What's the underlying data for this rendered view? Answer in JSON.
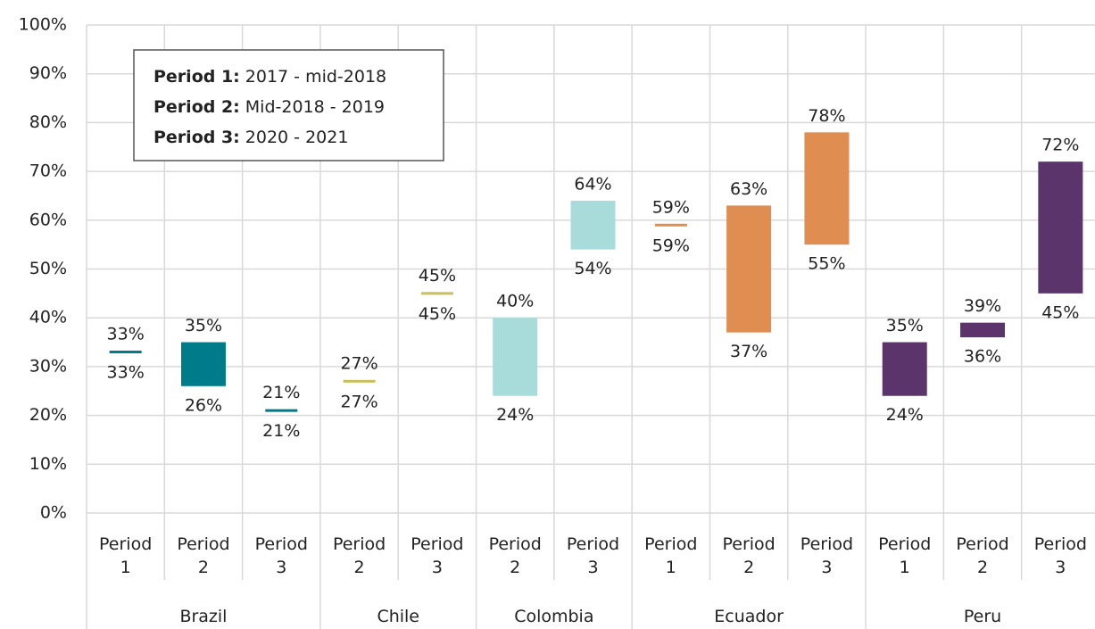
{
  "chart_data": {
    "type": "floating_bar",
    "groups": [
      {
        "name": "Brazil",
        "color": "#007b8a",
        "categories": [
          "Period 1",
          "Period 2",
          "Period 3"
        ],
        "low": [
          33,
          26,
          21
        ],
        "high": [
          33,
          35,
          21
        ],
        "low_labels": [
          "33%",
          "26%",
          "21%"
        ],
        "high_labels": [
          "33%",
          "35%",
          "21%"
        ]
      },
      {
        "name": "Chile",
        "color": "#c9bf5a",
        "categories": [
          "Period 2",
          "Period 3"
        ],
        "low": [
          27,
          45
        ],
        "high": [
          27,
          45
        ],
        "low_labels": [
          "27%",
          "45%"
        ],
        "high_labels": [
          "27%",
          "45%"
        ]
      },
      {
        "name": "Colombia",
        "color": "#a8dcdb",
        "categories": [
          "Period 2",
          "Period 3"
        ],
        "low": [
          24,
          54
        ],
        "high": [
          40,
          64
        ],
        "low_labels": [
          "24%",
          "54%"
        ],
        "high_labels": [
          "40%",
          "64%"
        ]
      },
      {
        "name": "Ecuador",
        "color": "#e08d52",
        "categories": [
          "Period 1",
          "Period 2",
          "Period 3"
        ],
        "low": [
          59,
          37,
          55
        ],
        "high": [
          59,
          63,
          78
        ],
        "low_labels": [
          "59%",
          "37%",
          "55%"
        ],
        "high_labels": [
          "59%",
          "63%",
          "78%"
        ]
      },
      {
        "name": "Peru",
        "color": "#5b346b",
        "categories": [
          "Period 1",
          "Period 2",
          "Period 3"
        ],
        "low": [
          24,
          36,
          45
        ],
        "high": [
          35,
          39,
          72
        ],
        "low_labels": [
          "24%",
          "36%",
          "45%"
        ],
        "high_labels": [
          "35%",
          "39%",
          "72%"
        ]
      }
    ],
    "notes": [
      {
        "label": "Period 1:",
        "text": "2017 - mid-2018"
      },
      {
        "label": "Period 2:",
        "text": "Mid-2018 - 2019"
      },
      {
        "label": "Period 3:",
        "text": "2020 - 2021"
      }
    ],
    "ylim": [
      0,
      100
    ],
    "yticks": [
      {
        "value": 0,
        "label": "0%"
      },
      {
        "value": 10,
        "label": "10%"
      },
      {
        "value": 20,
        "label": "20%"
      },
      {
        "value": 30,
        "label": "30%"
      },
      {
        "value": 40,
        "label": "40%"
      },
      {
        "value": 50,
        "label": "50%"
      },
      {
        "value": 60,
        "label": "60%"
      },
      {
        "value": 70,
        "label": "70%"
      },
      {
        "value": 80,
        "label": "80%"
      },
      {
        "value": 90,
        "label": "90%"
      },
      {
        "value": 100,
        "label": "100%"
      }
    ],
    "grid": true
  }
}
